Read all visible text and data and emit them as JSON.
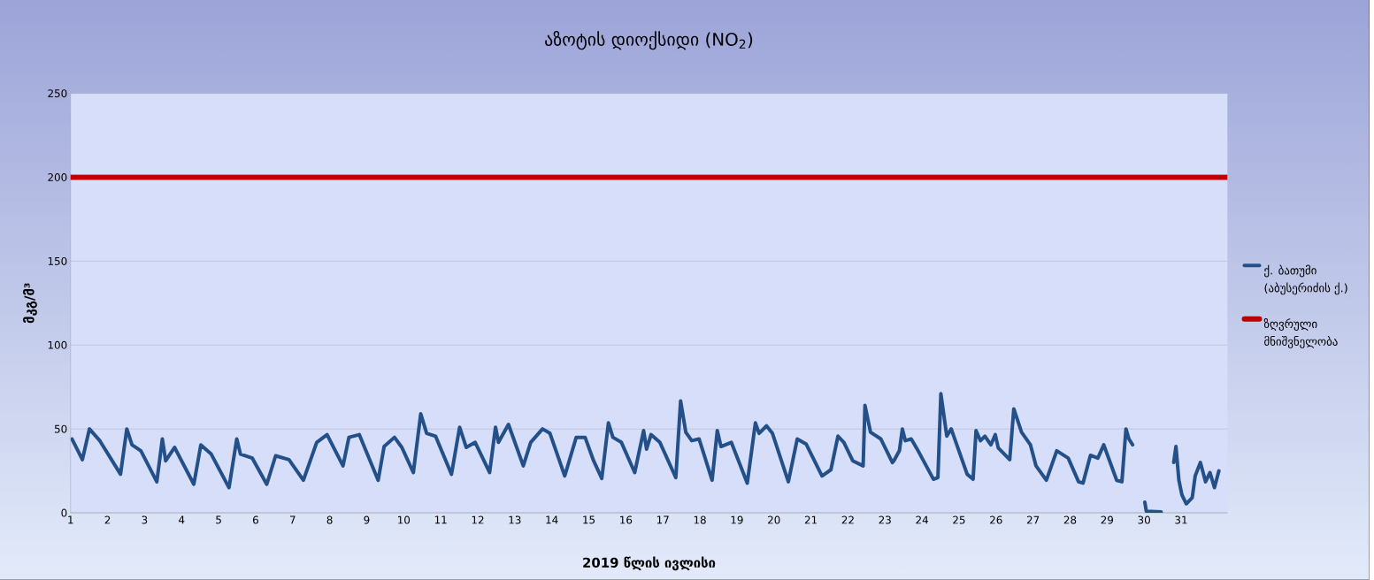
{
  "chart_data": {
    "type": "line",
    "title": "აზოტის დიოქსიდი (NO$_{2}$)",
    "xlabel": "2019 წლის ივლისი",
    "ylabel": "მკგ/მ³",
    "xlim": [
      1,
      32.25
    ],
    "xticks": [
      1,
      2,
      3,
      4,
      5,
      6,
      7,
      8,
      9,
      10,
      11,
      12,
      13,
      14,
      15,
      16,
      17,
      18,
      19,
      20,
      21,
      22,
      23,
      24,
      25,
      26,
      27,
      28,
      29,
      30,
      31
    ],
    "ylim": [
      0,
      250
    ],
    "yticks": [
      0,
      50,
      100,
      150,
      200,
      250
    ],
    "grid": "y",
    "legend": "right",
    "series": [
      {
        "name": "ქ. ბათუმი (აბუსერიძის ქ.)",
        "color": "#245089",
        "x": [
          1.04,
          1.32,
          1.51,
          1.79,
          2.35,
          2.52,
          2.66,
          2.9,
          3.33,
          3.48,
          3.57,
          3.81,
          4.33,
          4.52,
          4.8,
          5.28,
          5.49,
          5.59,
          5.91,
          6.3,
          6.54,
          6.9,
          7.29,
          7.65,
          7.93,
          8.36,
          8.52,
          8.8,
          9.31,
          9.47,
          9.75,
          9.95,
          10.26,
          10.46,
          10.62,
          10.86,
          11.29,
          11.51,
          11.69,
          11.93,
          12.32,
          12.48,
          12.56,
          12.83,
          13.23,
          13.43,
          13.75,
          13.95,
          14.35,
          14.66,
          14.9,
          15.13,
          15.35,
          15.53,
          15.65,
          15.88,
          16.24,
          16.48,
          16.56,
          16.68,
          16.92,
          17.35,
          17.48,
          17.62,
          17.78,
          17.98,
          18.33,
          18.47,
          18.57,
          18.85,
          19.28,
          19.5,
          19.6,
          19.8,
          19.96,
          20.39,
          20.63,
          20.87,
          21.3,
          21.54,
          21.73,
          21.89,
          22.13,
          22.41,
          22.46,
          22.61,
          22.89,
          23.2,
          23.24,
          23.39,
          23.47,
          23.55,
          23.71,
          23.87,
          24.31,
          24.43,
          24.51,
          24.67,
          24.79,
          25.22,
          25.38,
          25.46,
          25.58,
          25.7,
          25.86,
          25.98,
          26.06,
          26.37,
          26.48,
          26.69,
          26.93,
          27.08,
          27.36,
          27.64,
          27.95,
          28.23,
          28.35,
          28.55,
          28.75,
          28.91,
          29.26,
          29.4,
          29.51,
          29.59,
          29.69,
          29.85,
          30.02,
          30.06,
          30.46,
          30.63,
          30.8,
          30.86,
          30.94,
          31.02,
          31.14,
          31.3,
          31.38,
          31.52,
          31.66,
          31.78,
          31.9,
          32.02
        ],
        "values": [
          44,
          31.7,
          50,
          43,
          23,
          50,
          40.5,
          37,
          18.5,
          44,
          31,
          39,
          17,
          40.5,
          35,
          15,
          44,
          35,
          32.6,
          17,
          34,
          31.7,
          19.4,
          42,
          46.6,
          28,
          45,
          46.6,
          19.4,
          39.5,
          45,
          39,
          24,
          59,
          47.4,
          45.7,
          23,
          51,
          39,
          42,
          24,
          51,
          42,
          52.7,
          28,
          42,
          50,
          47.4,
          22,
          45,
          45,
          31,
          20.5,
          53.6,
          45,
          42,
          24,
          49,
          38,
          46.6,
          42,
          21,
          66.7,
          48,
          43,
          44,
          19.4,
          49,
          39.5,
          42,
          17.7,
          53.6,
          47.4,
          51.8,
          47.4,
          18.5,
          44,
          41,
          22,
          25.7,
          45.7,
          42,
          31,
          28,
          64,
          48,
          44,
          30,
          31,
          37,
          50,
          43,
          44,
          38,
          20,
          21,
          71,
          45.7,
          50,
          23,
          20,
          49,
          43,
          45.7,
          40.5,
          46.6,
          38.7,
          31.7,
          62,
          48,
          40.5,
          28,
          19.4,
          37,
          32.6,
          18.5,
          17.7,
          34.3,
          32.6,
          40.5,
          19.4,
          18.5,
          50,
          44,
          40.5,
          null,
          6.3,
          1,
          0.5,
          null,
          30,
          39.5,
          19.4,
          10.7,
          5.4,
          9,
          22,
          30,
          18.5,
          24,
          15,
          25
        ]
      },
      {
        "name": "ზღვრული მნიშვნელობა",
        "color": "#c00000",
        "x": [
          1,
          32.25
        ],
        "values": [
          200,
          200
        ]
      }
    ]
  }
}
